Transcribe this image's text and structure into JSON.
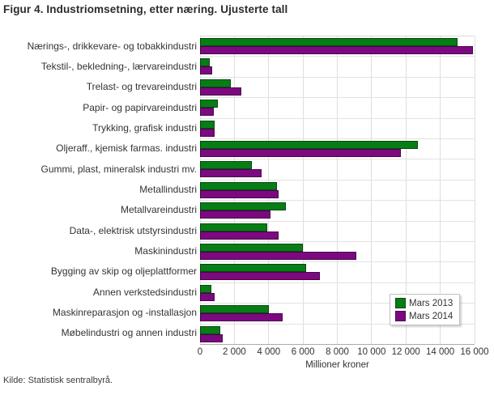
{
  "source": "Kilde: Statistisk sentralbyrå.",
  "chart_data": {
    "type": "bar",
    "orientation": "horizontal",
    "title": "Figur 4. Industriomsetning, etter næring. Ujusterte tall",
    "xlabel": "Millioner kroner",
    "xlim": [
      0,
      16000
    ],
    "grid": true,
    "legend_position": "bottom-right",
    "categories": [
      "Nærings-, drikkevare- og tobakkindustri",
      "Tekstil-, bekledning-, lærvareindustri",
      "Trelast- og trevareindustri",
      "Papir- og papirvareindustri",
      "Trykking, grafisk industri",
      "Oljeraff., kjemisk farmas. industri",
      "Gummi, plast, mineralsk industri mv.",
      "Metallindustri",
      "Metallvareindustri",
      "Data-, elektrisk utstyrsindustri",
      "Maskinindustri",
      "Bygging av skip og oljeplattformer",
      "Annen verkstedsindustri",
      "Maskinreparasjon og -installasjon",
      "Møbelindustri og annen industri"
    ],
    "series": [
      {
        "name": "Mars 2013",
        "color": "#077d16",
        "values": [
          15000,
          550,
          1800,
          1050,
          850,
          12700,
          3000,
          4500,
          5000,
          3900,
          6000,
          6200,
          650,
          4000,
          1200
        ]
      },
      {
        "name": "Mars 2014",
        "color": "#7c0980",
        "values": [
          15900,
          700,
          2400,
          800,
          830,
          11700,
          3600,
          4600,
          4100,
          4600,
          9100,
          7000,
          850,
          4800,
          1300
        ]
      }
    ],
    "xticks": [
      {
        "value": 0,
        "label": "0"
      },
      {
        "value": 2000,
        "label": "2 000"
      },
      {
        "value": 4000,
        "label": "4 000"
      },
      {
        "value": 6000,
        "label": "6 000"
      },
      {
        "value": 8000,
        "label": "8 000"
      },
      {
        "value": 10000,
        "label": "10 000"
      },
      {
        "value": 12000,
        "label": "12 000"
      },
      {
        "value": 14000,
        "label": "14 000"
      },
      {
        "value": 16000,
        "label": "16 000"
      }
    ]
  }
}
